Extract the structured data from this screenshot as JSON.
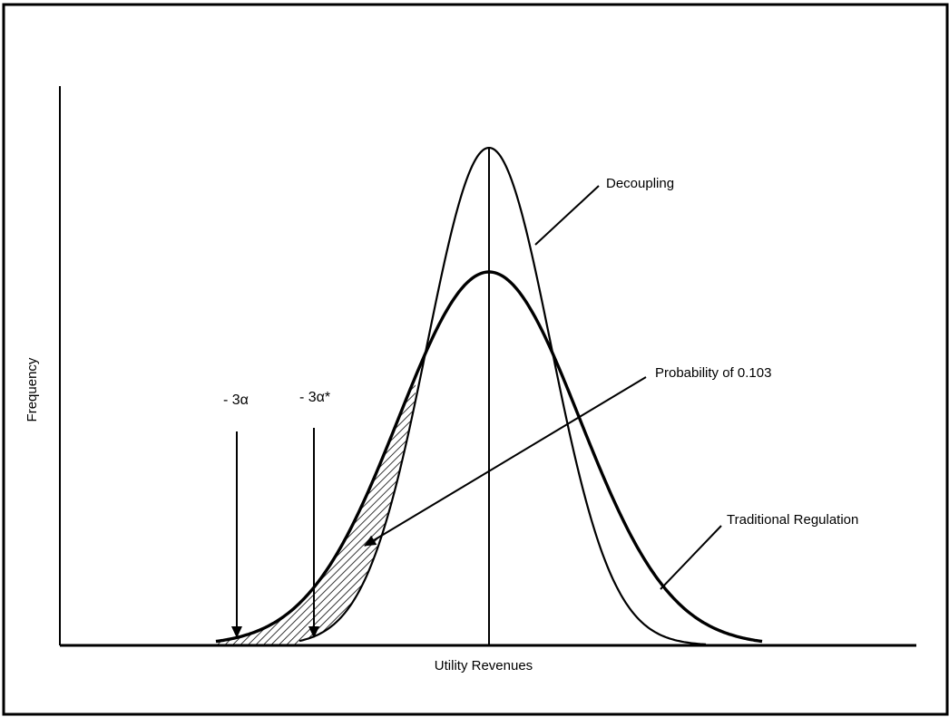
{
  "labels": {
    "xlabel": "Utility Revenues",
    "ylabel": "Frequency",
    "decoupling": "Decoupling",
    "traditional": "Traditional Regulation",
    "probability": "Probability of  0.103",
    "minus_3a": "- 3α",
    "minus_3a_star": "- 3α*"
  },
  "colors": {
    "line": "#000000",
    "background": "#ffffff",
    "border": "#000000"
  }
}
